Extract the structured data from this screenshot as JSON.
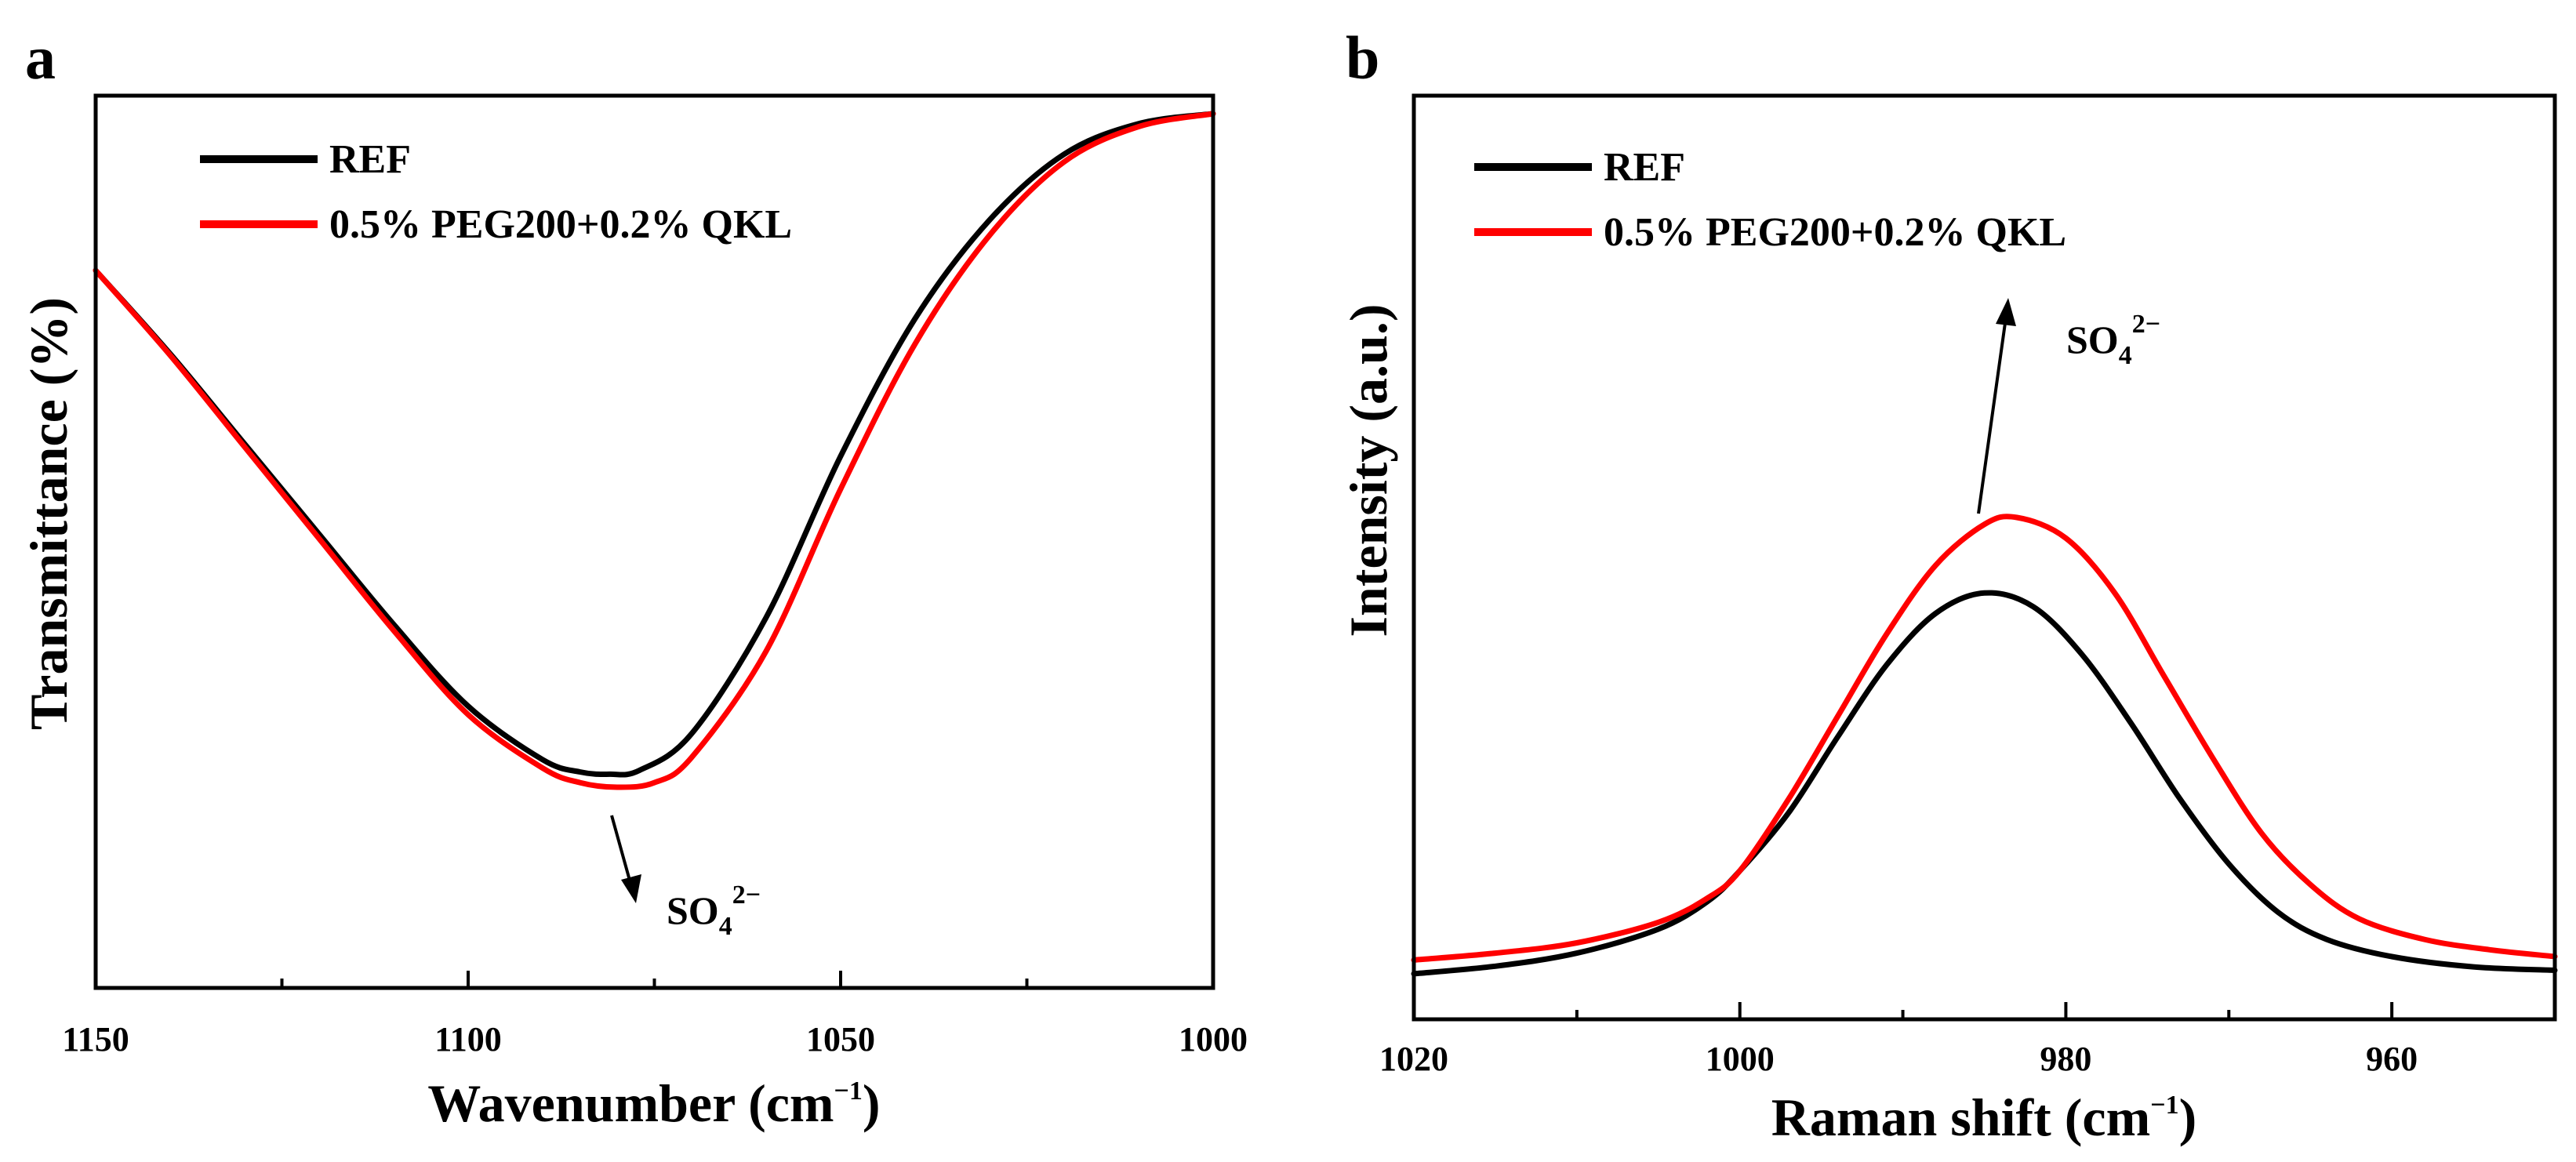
{
  "chart_data": [
    {
      "type": "line",
      "panel_label": "a",
      "xlabel": "Wavenumber (cm",
      "xlabel_sup": "−1",
      "xlabel_end": ")",
      "ylabel": "Transmittance (%)",
      "xlim": [
        1150,
        1000
      ],
      "ylim": [
        0,
        100
      ],
      "x_reversed": true,
      "yticks_shown": false,
      "xticks": [
        1150,
        1100,
        1050,
        1000
      ],
      "xtick_labels": [
        "1150",
        "1100",
        "1050",
        "1000"
      ],
      "legend_position": "top-left",
      "series": [
        {
          "name": "REF",
          "color": "#000000",
          "x": [
            1150,
            1140,
            1130,
            1120,
            1110,
            1100,
            1090,
            1085,
            1081,
            1077,
            1070,
            1060,
            1050,
            1040,
            1030,
            1020,
            1010,
            1000
          ],
          "y": [
            79.5,
            68.6,
            56.8,
            45.0,
            33.2,
            22.5,
            15.5,
            13.9,
            13.6,
            14.1,
            18.9,
            34.1,
            55.2,
            73.2,
            86.1,
            94.7,
            98.7,
            100
          ]
        },
        {
          "name": "0.5% PEG200+0.2% QKL",
          "color": "#ff0000",
          "x": [
            1150,
            1140,
            1130,
            1120,
            1110,
            1100,
            1090,
            1085,
            1080,
            1075,
            1070,
            1060,
            1050,
            1040,
            1030,
            1020,
            1010,
            1000
          ],
          "y": [
            79.5,
            68.4,
            56.4,
            44.4,
            32.4,
            21.4,
            14.4,
            12.5,
            11.9,
            12.5,
            15.8,
            29.7,
            50.9,
            69.9,
            84.1,
            93.7,
            98.3,
            100
          ]
        }
      ],
      "annotations": [
        {
          "text": "SO",
          "sub": "4",
          "sup": "2−",
          "note": "arrow points downward"
        }
      ]
    },
    {
      "type": "line",
      "panel_label": "b",
      "xlabel": "Raman shift (cm",
      "xlabel_sup": "−1",
      "xlabel_end": ")",
      "ylabel": "Intensity (a.u.)",
      "xlim": [
        1020,
        950
      ],
      "ylim": [
        0,
        100
      ],
      "x_reversed": true,
      "yticks_shown": false,
      "xticks": [
        1020,
        1000,
        980,
        960
      ],
      "xtick_labels": [
        "1020",
        "1000",
        "980",
        "960"
      ],
      "legend_position": "top-left",
      "series": [
        {
          "name": "REF",
          "color": "#000000",
          "x": [
            1020,
            1015,
            1010,
            1005,
            1002,
            1000,
            997,
            994,
            991,
            988,
            985,
            982,
            979,
            976,
            973,
            970,
            967,
            964,
            960,
            955,
            950
          ],
          "y": [
            1.5,
            2.6,
            4.5,
            8.0,
            12.0,
            16.5,
            25.0,
            36.0,
            46.5,
            54.0,
            57.0,
            55.0,
            48.0,
            38.0,
            27.0,
            17.5,
            10.5,
            6.5,
            4.0,
            2.5,
            2.0
          ]
        },
        {
          "name": "0.5% PEG200+0.2% QKL",
          "color": "#ff0000",
          "x": [
            1020,
            1015,
            1010,
            1005,
            1002,
            1000,
            997,
            994,
            991,
            988,
            985,
            983,
            980,
            977,
            974,
            971,
            968,
            965,
            962,
            958,
            954,
            950
          ],
          "y": [
            3.5,
            4.5,
            6.0,
            9.0,
            12.5,
            16.5,
            27.0,
            39.0,
            51.0,
            61.0,
            67.0,
            68.0,
            65.0,
            57.0,
            45.0,
            33.0,
            22.0,
            14.5,
            9.5,
            6.5,
            5.0,
            4.0
          ]
        }
      ],
      "annotations": [
        {
          "text": "SO",
          "sub": "4",
          "sup": "2−",
          "note": "arrow points upward"
        }
      ]
    }
  ]
}
